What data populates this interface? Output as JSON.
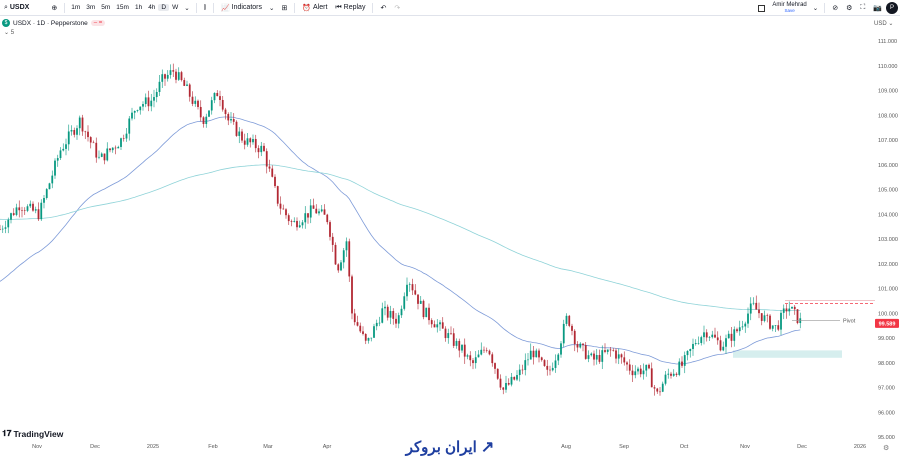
{
  "toolbar": {
    "symbol": "USDX",
    "timeframes": [
      "1m",
      "3m",
      "5m",
      "15m",
      "1h",
      "4h",
      "D",
      "W"
    ],
    "active_timeframe": "D",
    "indicators": "Indicators",
    "alert": "Alert",
    "replay": "Replay"
  },
  "user": {
    "name": "Amir Mehrad",
    "status": "Save",
    "avatar": "P"
  },
  "legend": {
    "title": "USDX · 1D · Pepperstone",
    "symbol_badge": "$",
    "collapse": "5"
  },
  "currency": "USD",
  "branding": {
    "tradingview": "TradingView",
    "watermark": "ایران بروکر"
  },
  "colors": {
    "up": "#089981",
    "down": "#b22833",
    "ma_fast": "#7e9bd8",
    "ma_slow": "#8fd3d8",
    "price_label": "#f23645",
    "zone": "#d6eeee"
  },
  "chart_data": {
    "type": "candlestick",
    "ylim": [
      95,
      111.5
    ],
    "yticks": [
      "111.000",
      "110.000",
      "109.000",
      "108.000",
      "107.000",
      "106.000",
      "105.000",
      "104.000",
      "103.000",
      "102.000",
      "101.000",
      "100.000",
      "99.000",
      "98.000",
      "97.000",
      "96.000",
      "95.000"
    ],
    "xticks": [
      "Nov",
      "Dec",
      "2025",
      "Feb",
      "Mar",
      "Apr",
      "Aug",
      "Sep",
      "Oct",
      "Nov",
      "Dec",
      "2026"
    ],
    "last_price": "99.589",
    "pivot_label": "Pivot",
    "pivot_level": 99.7,
    "resistance_level": 100.4,
    "zone": [
      98.2,
      98.5
    ],
    "approx_close": [
      [
        "2024-10-13",
        103.4
      ],
      [
        "2024-10-23",
        104.4
      ],
      [
        "2024-11-02",
        104.0
      ],
      [
        "2024-11-13",
        106.6
      ],
      [
        "2024-11-23",
        107.8
      ],
      [
        "2024-12-03",
        106.2
      ],
      [
        "2024-12-14",
        107.0
      ],
      [
        "2024-12-22",
        108.4
      ],
      [
        "2024-12-30",
        108.6
      ],
      [
        "2025-01-04",
        109.4
      ],
      [
        "2025-01-10",
        109.8
      ],
      [
        "2025-01-17",
        109.0
      ],
      [
        "2025-01-25",
        107.8
      ],
      [
        "2025-02-02",
        109.0
      ],
      [
        "2025-02-07",
        107.8
      ],
      [
        "2025-02-15",
        107.0
      ],
      [
        "2025-02-25",
        106.6
      ],
      [
        "2025-03-05",
        104.4
      ],
      [
        "2025-03-12",
        103.6
      ],
      [
        "2025-03-23",
        104.2
      ],
      [
        "2025-03-30",
        103.8
      ],
      [
        "2025-04-04",
        101.8
      ],
      [
        "2025-04-09",
        103.0
      ],
      [
        "2025-04-11",
        100.1
      ],
      [
        "2025-04-19",
        98.7
      ],
      [
        "2025-04-27",
        100.1
      ],
      [
        "2025-05-05",
        99.7
      ],
      [
        "2025-05-10",
        101.5
      ],
      [
        "2025-05-18",
        100.1
      ],
      [
        "2025-05-28",
        99.3
      ],
      [
        "2025-06-07",
        98.5
      ],
      [
        "2025-06-12",
        97.9
      ],
      [
        "2025-06-20",
        98.7
      ],
      [
        "2025-06-28",
        96.9
      ],
      [
        "2025-07-06",
        97.5
      ],
      [
        "2025-07-13",
        98.5
      ],
      [
        "2025-07-21",
        97.5
      ],
      [
        "2025-07-26",
        98.5
      ],
      [
        "2025-07-31",
        99.9
      ],
      [
        "2025-08-05",
        98.7
      ],
      [
        "2025-08-13",
        98.1
      ],
      [
        "2025-08-23",
        98.5
      ],
      [
        "2025-09-02",
        97.7
      ],
      [
        "2025-09-10",
        97.7
      ],
      [
        "2025-09-15",
        96.7
      ],
      [
        "2025-09-20",
        97.5
      ],
      [
        "2025-09-28",
        97.9
      ],
      [
        "2025-10-05",
        98.9
      ],
      [
        "2025-10-10",
        99.3
      ],
      [
        "2025-10-18",
        98.7
      ],
      [
        "2025-10-26",
        99.3
      ],
      [
        "2025-11-03",
        100.3
      ],
      [
        "2025-11-10",
        99.7
      ],
      [
        "2025-11-15",
        99.4
      ],
      [
        "2025-11-21",
        100.3
      ],
      [
        "2025-11-26",
        99.8
      ],
      [
        "2025-11-28",
        99.6
      ]
    ]
  }
}
